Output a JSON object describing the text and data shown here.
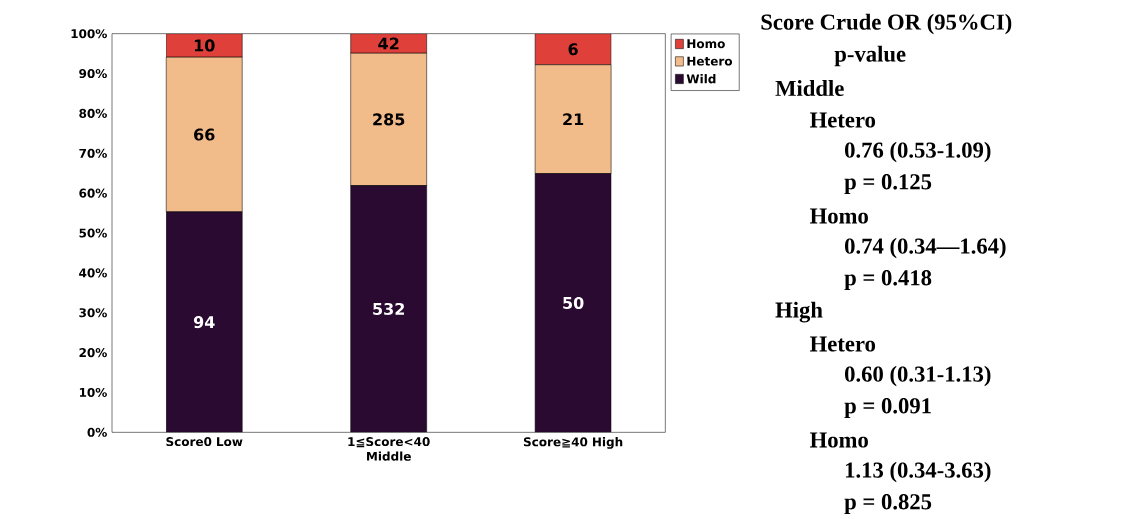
{
  "chart_data": {
    "type": "bar",
    "stacked": true,
    "categories": [
      "Score0 Low",
      "1≦Score<40 Middle",
      "Score≧40 High"
    ],
    "series": [
      {
        "name": "Wild",
        "color": "#2a0a30",
        "values": [
          55.3,
          61.9,
          64.9
        ]
      },
      {
        "name": "Hetero",
        "color": "#f2bb8a",
        "values": [
          38.8,
          33.2,
          27.3
        ]
      },
      {
        "name": "Homo",
        "color": "#e0403a",
        "values": [
          5.9,
          4.9,
          7.8
        ]
      }
    ],
    "ylim": [
      0,
      100
    ],
    "yticks": [
      {
        "value": 0,
        "label": "0%"
      },
      {
        "value": 10,
        "label": "10%"
      },
      {
        "value": 20,
        "label": "20%"
      },
      {
        "value": 30,
        "label": "30%"
      },
      {
        "value": 40,
        "label": "40%"
      },
      {
        "value": 50,
        "label": "50%"
      },
      {
        "value": 60,
        "label": "60%"
      },
      {
        "value": 70,
        "label": "70%"
      },
      {
        "value": 80,
        "label": "80%"
      },
      {
        "value": 90,
        "label": "90%"
      },
      {
        "value": 100,
        "label": "100%"
      }
    ],
    "legend": "top right",
    "annotations": [
      "Score Crude OR (95%CI)",
      "p-value",
      "Middle",
      "Hetero",
      "0.76 (0.53-1.09)",
      "p = 0.125",
      "Homo",
      "0.74 (0.34—1.64)",
      "p = 0.418",
      "High",
      "Hetero",
      "0.60 (0.31-1.13)",
      "p = 0.091",
      "Homo",
      "1.13 (0.34-3.63)",
      "p = 0.825",
      "94",
      "532",
      "50",
      "66",
      "285",
      "21",
      "10",
      "42",
      "6"
    ]
  }
}
